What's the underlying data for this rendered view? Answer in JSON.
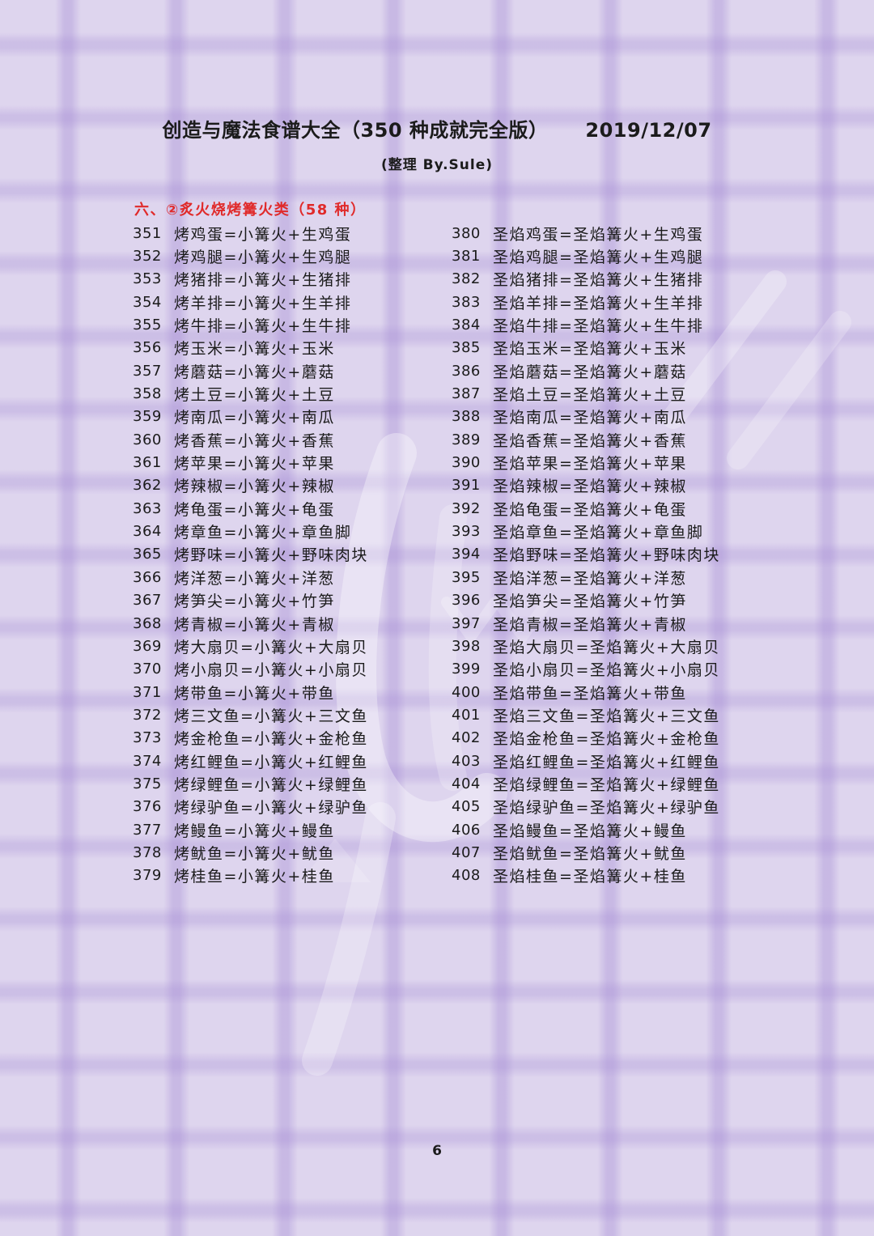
{
  "page": {
    "title": "创造与魔法食谱大全（350 种成就完全版）",
    "date": "2019/12/07",
    "subtitle": "(整理 By.Sule)",
    "page_number": "6"
  },
  "section": {
    "heading": "六、②炙火烧烤篝火类（58 种）"
  },
  "colors": {
    "background": "#ded5ee",
    "grid_line": "#c9bce4",
    "text": "#1b1b1b",
    "heading_red": "#e02a2a",
    "watermark": "#ffffff"
  },
  "recipes": {
    "left": [
      {
        "no": "351",
        "text": "烤鸡蛋=小篝火+生鸡蛋"
      },
      {
        "no": "352",
        "text": "烤鸡腿=小篝火+生鸡腿"
      },
      {
        "no": "353",
        "text": "烤猪排=小篝火+生猪排"
      },
      {
        "no": "354",
        "text": "烤羊排=小篝火+生羊排"
      },
      {
        "no": "355",
        "text": "烤牛排=小篝火+生牛排"
      },
      {
        "no": "356",
        "text": "烤玉米=小篝火+玉米"
      },
      {
        "no": "357",
        "text": "烤蘑菇=小篝火+蘑菇"
      },
      {
        "no": "358",
        "text": "烤土豆=小篝火+土豆"
      },
      {
        "no": "359",
        "text": "烤南瓜=小篝火+南瓜"
      },
      {
        "no": "360",
        "text": "烤香蕉=小篝火+香蕉"
      },
      {
        "no": "361",
        "text": "烤苹果=小篝火+苹果"
      },
      {
        "no": "362",
        "text": "烤辣椒=小篝火+辣椒"
      },
      {
        "no": "363",
        "text": "烤龟蛋=小篝火+龟蛋"
      },
      {
        "no": "364",
        "text": "烤章鱼=小篝火+章鱼脚"
      },
      {
        "no": "365",
        "text": "烤野味=小篝火+野味肉块"
      },
      {
        "no": "366",
        "text": "烤洋葱=小篝火+洋葱"
      },
      {
        "no": "367",
        "text": "烤笋尖=小篝火+竹笋"
      },
      {
        "no": "368",
        "text": "烤青椒=小篝火+青椒"
      },
      {
        "no": "369",
        "text": "烤大扇贝=小篝火+大扇贝"
      },
      {
        "no": "370",
        "text": "烤小扇贝=小篝火+小扇贝"
      },
      {
        "no": "371",
        "text": "烤带鱼=小篝火+带鱼"
      },
      {
        "no": "372",
        "text": "烤三文鱼=小篝火+三文鱼"
      },
      {
        "no": "373",
        "text": "烤金枪鱼=小篝火+金枪鱼"
      },
      {
        "no": "374",
        "text": "烤红鲤鱼=小篝火+红鲤鱼"
      },
      {
        "no": "375",
        "text": "烤绿鲤鱼=小篝火+绿鲤鱼"
      },
      {
        "no": "376",
        "text": "烤绿驴鱼=小篝火+绿驴鱼"
      },
      {
        "no": "377",
        "text": "烤鳗鱼=小篝火+鳗鱼"
      },
      {
        "no": "378",
        "text": "烤鱿鱼=小篝火+鱿鱼"
      },
      {
        "no": "379",
        "text": "烤桂鱼=小篝火+桂鱼"
      }
    ],
    "right": [
      {
        "no": "380",
        "text": "圣焰鸡蛋=圣焰篝火+生鸡蛋"
      },
      {
        "no": "381",
        "text": "圣焰鸡腿=圣焰篝火+生鸡腿"
      },
      {
        "no": "382",
        "text": "圣焰猪排=圣焰篝火+生猪排"
      },
      {
        "no": "383",
        "text": "圣焰羊排=圣焰篝火+生羊排"
      },
      {
        "no": "384",
        "text": "圣焰牛排=圣焰篝火+生牛排"
      },
      {
        "no": "385",
        "text": "圣焰玉米=圣焰篝火+玉米"
      },
      {
        "no": "386",
        "text": "圣焰蘑菇=圣焰篝火+蘑菇"
      },
      {
        "no": "387",
        "text": "圣焰土豆=圣焰篝火+土豆"
      },
      {
        "no": "388",
        "text": "圣焰南瓜=圣焰篝火+南瓜"
      },
      {
        "no": "389",
        "text": "圣焰香蕉=圣焰篝火+香蕉"
      },
      {
        "no": "390",
        "text": "圣焰苹果=圣焰篝火+苹果"
      },
      {
        "no": "391",
        "text": "圣焰辣椒=圣焰篝火+辣椒"
      },
      {
        "no": "392",
        "text": "圣焰龟蛋=圣焰篝火+龟蛋"
      },
      {
        "no": "393",
        "text": "圣焰章鱼=圣焰篝火+章鱼脚"
      },
      {
        "no": "394",
        "text": "圣焰野味=圣焰篝火+野味肉块"
      },
      {
        "no": "395",
        "text": "圣焰洋葱=圣焰篝火+洋葱"
      },
      {
        "no": "396",
        "text": "圣焰笋尖=圣焰篝火+竹笋"
      },
      {
        "no": "397",
        "text": "圣焰青椒=圣焰篝火+青椒"
      },
      {
        "no": "398",
        "text": "圣焰大扇贝=圣焰篝火+大扇贝"
      },
      {
        "no": "399",
        "text": "圣焰小扇贝=圣焰篝火+小扇贝"
      },
      {
        "no": "400",
        "text": "圣焰带鱼=圣焰篝火+带鱼"
      },
      {
        "no": "401",
        "text": "圣焰三文鱼=圣焰篝火+三文鱼"
      },
      {
        "no": "402",
        "text": "圣焰金枪鱼=圣焰篝火+金枪鱼"
      },
      {
        "no": "403",
        "text": "圣焰红鲤鱼=圣焰篝火+红鲤鱼"
      },
      {
        "no": "404",
        "text": "圣焰绿鲤鱼=圣焰篝火+绿鲤鱼"
      },
      {
        "no": "405",
        "text": "圣焰绿驴鱼=圣焰篝火+绿驴鱼"
      },
      {
        "no": "406",
        "text": "圣焰鳗鱼=圣焰篝火+鳗鱼"
      },
      {
        "no": "407",
        "text": "圣焰鱿鱼=圣焰篝火+鱿鱼"
      },
      {
        "no": "408",
        "text": "圣焰桂鱼=圣焰篝火+桂鱼"
      }
    ]
  }
}
